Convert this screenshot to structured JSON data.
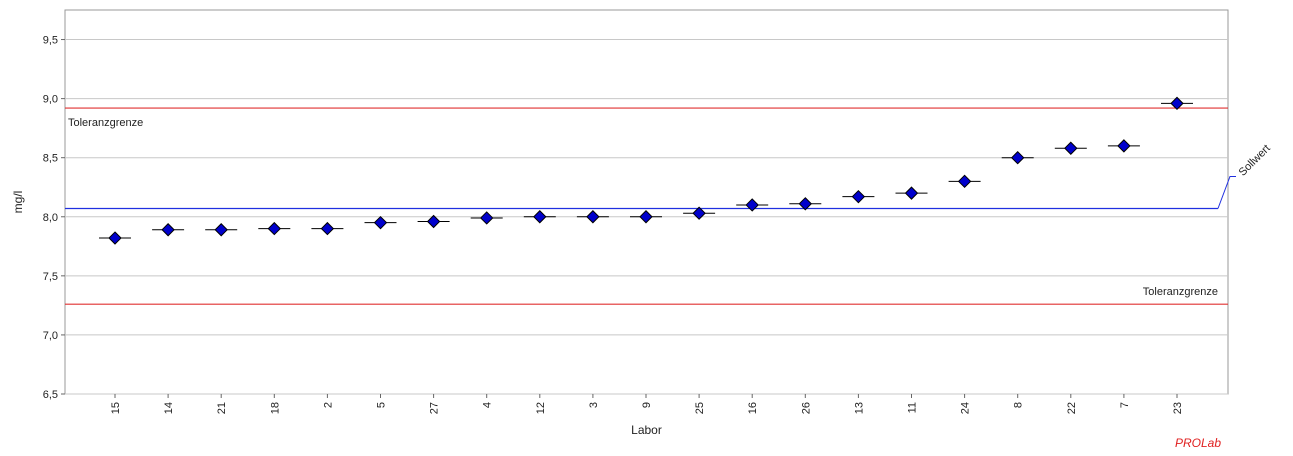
{
  "chart_data": {
    "type": "scatter",
    "xlabel": "Labor",
    "ylabel": "mg/l",
    "ylim": [
      6.5,
      9.75
    ],
    "yticks": [
      6.5,
      7.0,
      7.5,
      8.0,
      8.5,
      9.0,
      9.5
    ],
    "ytick_labels": [
      "6,5",
      "7,0",
      "7,5",
      "8,0",
      "8,5",
      "9,0",
      "9,5"
    ],
    "categories": [
      "15",
      "14",
      "21",
      "18",
      "2",
      "5",
      "27",
      "4",
      "12",
      "3",
      "9",
      "25",
      "16",
      "26",
      "13",
      "11",
      "24",
      "8",
      "22",
      "7",
      "23"
    ],
    "values": [
      7.82,
      7.89,
      7.89,
      7.9,
      7.9,
      7.95,
      7.96,
      7.99,
      8.0,
      8.0,
      8.0,
      8.03,
      8.1,
      8.11,
      8.17,
      8.2,
      8.3,
      8.5,
      8.58,
      8.6,
      8.96
    ],
    "grid": true,
    "reference_lines": {
      "upper": {
        "value": 8.92,
        "label": "Toleranzgrenze",
        "color": "#e03030"
      },
      "lower": {
        "value": 7.26,
        "label": "Toleranzgrenze",
        "color": "#e03030"
      },
      "target": {
        "value": 8.07,
        "label": "Sollwert",
        "color": "#2030e0"
      }
    },
    "marker_color": "#0000cc"
  },
  "brand": {
    "text": "PROLab",
    "color": "#e02020"
  }
}
